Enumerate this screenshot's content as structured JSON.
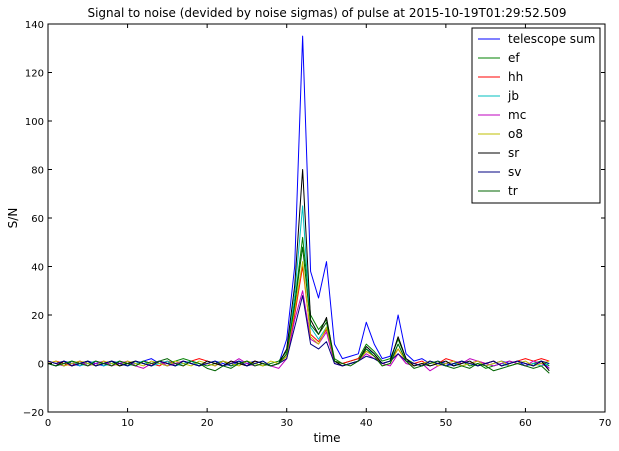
{
  "chart_data": {
    "type": "line",
    "title": "Signal to noise (devided by noise sigmas) of pulse at 2015-10-19T01:29:52.509",
    "xlabel": "time",
    "ylabel": "S/N",
    "xlim": [
      0,
      70
    ],
    "ylim": [
      -20,
      140
    ],
    "xticks": [
      0,
      10,
      20,
      30,
      40,
      50,
      60,
      70
    ],
    "yticks": [
      -20,
      0,
      20,
      40,
      60,
      80,
      100,
      120,
      140
    ],
    "xtick_labels": [
      "0",
      "10",
      "20",
      "30",
      "40",
      "50",
      "60",
      "70"
    ],
    "ytick_labels": [
      "−20",
      "0",
      "20",
      "40",
      "60",
      "80",
      "100",
      "120",
      "140"
    ],
    "grid": false,
    "legend_position": "top-right",
    "x": [
      0,
      1,
      2,
      3,
      4,
      5,
      6,
      7,
      8,
      9,
      10,
      11,
      12,
      13,
      14,
      15,
      16,
      17,
      18,
      19,
      20,
      21,
      22,
      23,
      24,
      25,
      26,
      27,
      28,
      29,
      30,
      31,
      32,
      33,
      34,
      35,
      36,
      37,
      38,
      39,
      40,
      41,
      42,
      43,
      44,
      45,
      46,
      47,
      48,
      49,
      50,
      51,
      52,
      53,
      54,
      55,
      56,
      57,
      58,
      59,
      60,
      61,
      62,
      63
    ],
    "series": [
      {
        "name": "telescope sum",
        "color": "#0000ff",
        "values": [
          0,
          -1,
          1,
          0,
          -1,
          1,
          0,
          -1,
          1,
          0,
          -1,
          0,
          1,
          2,
          0,
          -1,
          0,
          1,
          0,
          -1,
          0,
          1,
          0,
          -1,
          1,
          0,
          1,
          0,
          -1,
          0,
          10,
          40,
          135,
          38,
          27,
          42,
          8,
          2,
          3,
          4,
          17,
          8,
          2,
          3,
          20,
          4,
          1,
          2,
          0,
          1,
          0,
          -1,
          1,
          0,
          1,
          -1,
          0,
          1,
          0,
          1,
          -1,
          0,
          1,
          -2
        ]
      },
      {
        "name": "ef",
        "color": "#008000",
        "values": [
          1,
          0,
          -1,
          1,
          0,
          1,
          -1,
          0,
          1,
          -1,
          0,
          1,
          0,
          -1,
          1,
          0,
          1,
          2,
          1,
          0,
          -1,
          0,
          1,
          -1,
          0,
          1,
          0,
          -1,
          0,
          1,
          5,
          25,
          52,
          20,
          14,
          18,
          2,
          0,
          1,
          2,
          8,
          5,
          1,
          2,
          10,
          2,
          0,
          -1,
          1,
          0,
          -1,
          0,
          1,
          -1,
          0,
          -2,
          -1,
          0,
          1,
          0,
          -1,
          0,
          1,
          -1
        ]
      },
      {
        "name": "hh",
        "color": "#ff0000",
        "values": [
          0,
          1,
          0,
          -1,
          1,
          0,
          1,
          0,
          -1,
          1,
          0,
          -1,
          1,
          0,
          -1,
          1,
          0,
          -1,
          1,
          2,
          1,
          0,
          -1,
          1,
          0,
          -1,
          1,
          0,
          -1,
          0,
          3,
          20,
          40,
          12,
          9,
          14,
          1,
          0,
          1,
          2,
          5,
          3,
          0,
          1,
          6,
          1,
          0,
          1,
          -1,
          0,
          2,
          1,
          -1,
          0,
          1,
          0,
          1,
          -1,
          0,
          1,
          2,
          1,
          2,
          1
        ]
      },
      {
        "name": "jb",
        "color": "#00bfbf",
        "values": [
          0,
          -1,
          0,
          1,
          -1,
          0,
          1,
          -1,
          0,
          1,
          -1,
          0,
          1,
          -1,
          0,
          1,
          -1,
          0,
          1,
          -1,
          0,
          1,
          -1,
          0,
          1,
          -1,
          0,
          1,
          -1,
          0,
          4,
          28,
          65,
          15,
          10,
          15,
          1,
          -1,
          0,
          1,
          6,
          4,
          0,
          1,
          8,
          1,
          -1,
          0,
          -1,
          0,
          -1,
          0,
          -1,
          0,
          -1,
          0,
          -1,
          0,
          -1,
          0,
          -1,
          0,
          -1,
          0
        ]
      },
      {
        "name": "mc",
        "color": "#bf00bf",
        "values": [
          1,
          0,
          -1,
          0,
          1,
          -1,
          0,
          1,
          -1,
          0,
          1,
          -1,
          -2,
          0,
          1,
          -1,
          0,
          1,
          0,
          -1,
          0,
          -1,
          1,
          0,
          2,
          0,
          -1,
          0,
          -1,
          -2,
          2,
          18,
          30,
          10,
          8,
          13,
          0,
          -1,
          0,
          1,
          4,
          2,
          0,
          -1,
          4,
          0,
          -1,
          0,
          -3,
          -1,
          0,
          1,
          0,
          2,
          1,
          0,
          -1,
          0,
          1,
          0,
          -1,
          1,
          0,
          -2
        ]
      },
      {
        "name": "o8",
        "color": "#bfbf00",
        "values": [
          0,
          1,
          -1,
          0,
          1,
          0,
          -1,
          1,
          0,
          -1,
          1,
          0,
          -1,
          1,
          0,
          -1,
          1,
          0,
          -1,
          1,
          0,
          -1,
          1,
          0,
          -1,
          1,
          0,
          -1,
          1,
          0,
          3,
          22,
          42,
          11,
          8,
          15,
          1,
          -1,
          0,
          1,
          5,
          3,
          -1,
          0,
          6,
          1,
          -1,
          0,
          1,
          -1,
          0,
          1,
          -1,
          0,
          1,
          -1,
          0,
          1,
          -1,
          0,
          1,
          -1,
          0,
          1
        ]
      },
      {
        "name": "sr",
        "color": "#000000",
        "values": [
          0,
          -1,
          1,
          -1,
          0,
          1,
          -1,
          0,
          1,
          -1,
          0,
          1,
          0,
          -1,
          1,
          0,
          -1,
          1,
          0,
          -1,
          1,
          0,
          -1,
          1,
          0,
          -1,
          1,
          0,
          -1,
          0,
          6,
          32,
          80,
          18,
          12,
          19,
          1,
          -1,
          0,
          1,
          7,
          4,
          0,
          1,
          11,
          2,
          -1,
          0,
          -1,
          0,
          1,
          -1,
          0,
          1,
          -1,
          0,
          1,
          -1,
          0,
          1,
          0,
          -1,
          1,
          -3
        ]
      },
      {
        "name": "sv",
        "color": "#000080",
        "values": [
          1,
          0,
          1,
          -1,
          0,
          1,
          -1,
          0,
          1,
          0,
          -1,
          1,
          0,
          -1,
          1,
          0,
          -1,
          1,
          0,
          -1,
          0,
          1,
          -1,
          0,
          1,
          -1,
          0,
          1,
          -1,
          0,
          2,
          15,
          28,
          8,
          6,
          9,
          0,
          -1,
          0,
          1,
          3,
          2,
          0,
          1,
          4,
          1,
          0,
          -1,
          1,
          0,
          -1,
          0,
          1,
          0,
          -1,
          0,
          1,
          -1,
          0,
          1,
          0,
          -1,
          1,
          0
        ]
      },
      {
        "name": "tr",
        "color": "#006400",
        "values": [
          0,
          -1,
          0,
          1,
          0,
          -1,
          1,
          0,
          -1,
          1,
          0,
          -1,
          1,
          0,
          1,
          2,
          0,
          -1,
          1,
          0,
          -2,
          -3,
          -1,
          -2,
          0,
          1,
          -1,
          0,
          -1,
          0,
          4,
          24,
          48,
          16,
          12,
          17,
          1,
          0,
          -1,
          1,
          6,
          3,
          -1,
          0,
          8,
          1,
          -2,
          -1,
          0,
          1,
          -1,
          -2,
          -1,
          -2,
          0,
          -1,
          -3,
          -2,
          -1,
          0,
          -1,
          -2,
          -1,
          -4
        ]
      }
    ]
  }
}
